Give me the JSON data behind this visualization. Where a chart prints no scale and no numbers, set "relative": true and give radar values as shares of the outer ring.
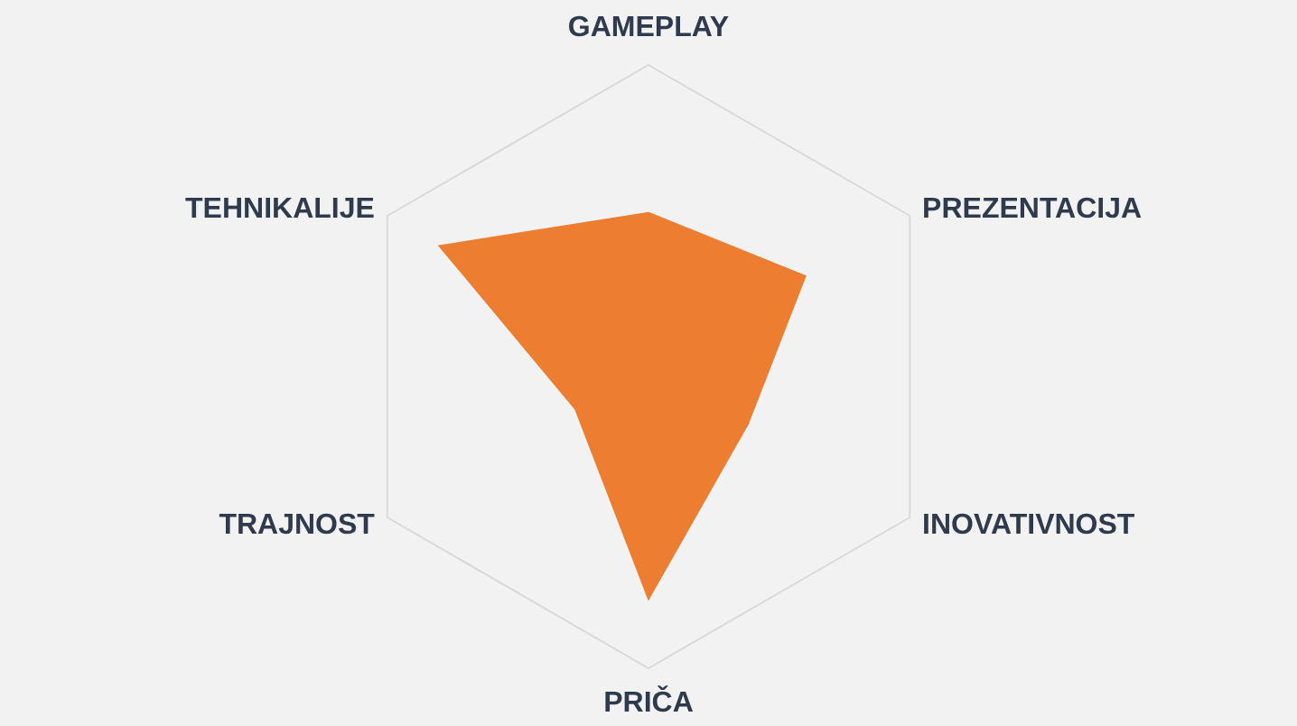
{
  "chart_data": {
    "type": "radar",
    "relative": true,
    "grid": true,
    "legend": false,
    "categories": [
      "GAMEPLAY",
      "PREZENTACIJA",
      "INOVATIVNOST",
      "PRIČA",
      "TRAJNOST",
      "TEHNIKALIJE"
    ],
    "series": [
      {
        "color": "#ed7d31",
        "values": [
          0.51,
          0.6,
          0.38,
          0.77,
          0.28,
          0.8
        ]
      }
    ]
  }
}
